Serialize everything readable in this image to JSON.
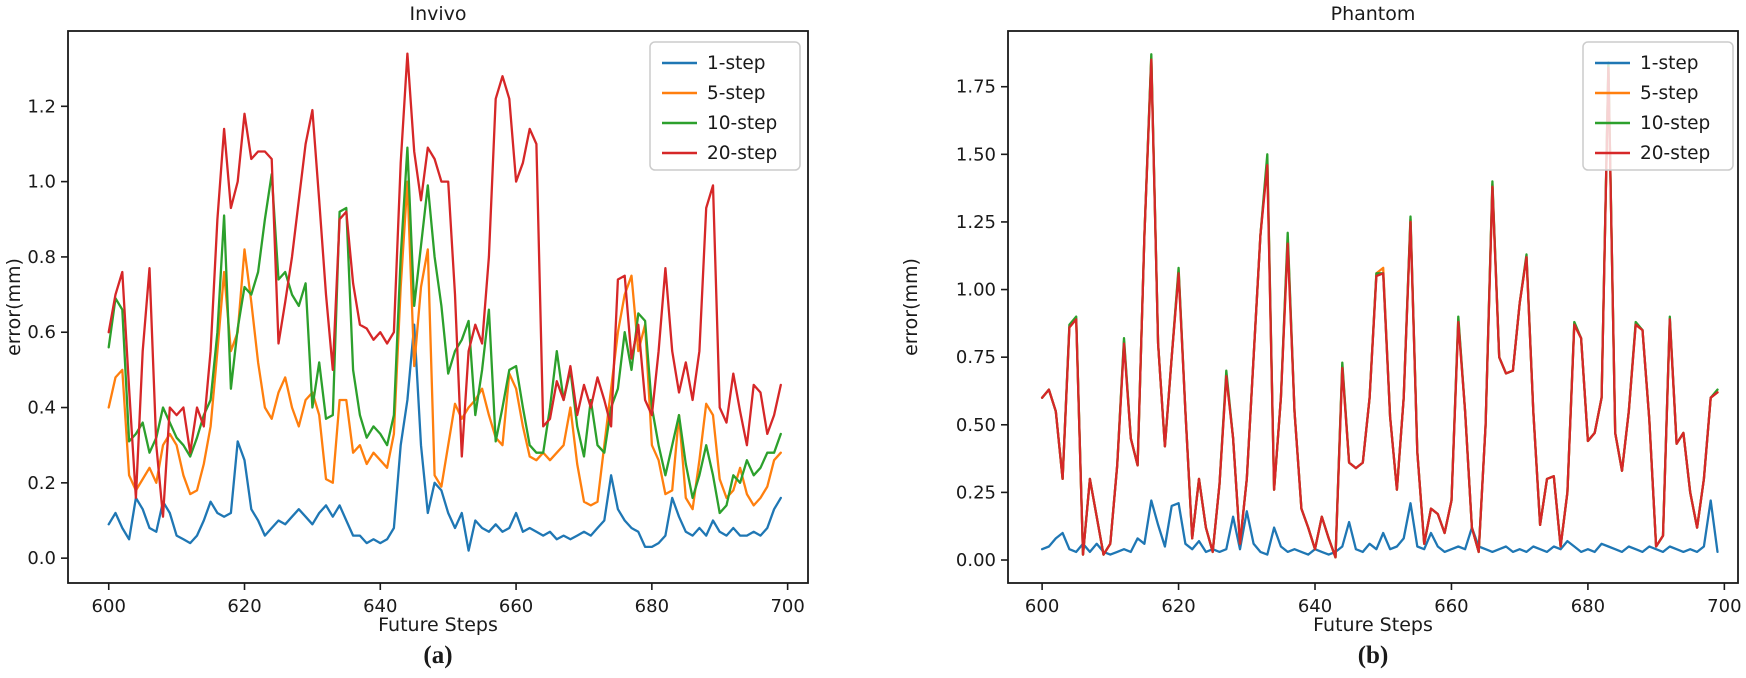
{
  "palette": {
    "blue": "#1f77b4",
    "orange": "#ff7f0e",
    "green": "#2ca02c",
    "red": "#d62728",
    "spine": "#1a1a1a",
    "legend_edge": "#cccccc"
  },
  "chart_data": [
    {
      "type": "line",
      "title": "Invivo",
      "caption": "(a)",
      "xlabel": "Future Steps",
      "ylabel": "error(mm)",
      "x": {
        "start": 600,
        "end": 699,
        "step": 1
      },
      "xlim": [
        594,
        703
      ],
      "ylim": [
        -0.066,
        1.4
      ],
      "xtick_labels": [
        "600",
        "620",
        "640",
        "660",
        "680",
        "700"
      ],
      "ytick_labels": [
        "0.0",
        "0.2",
        "0.4",
        "0.6",
        "0.8",
        "1.0",
        "1.2"
      ],
      "grid": false,
      "legend": {
        "position": "upper right",
        "entries": [
          "1-step",
          "5-step",
          "10-step",
          "20-step"
        ]
      },
      "series": [
        {
          "name": "1-step",
          "color": "blue",
          "values": [
            0.09,
            0.12,
            0.08,
            0.05,
            0.16,
            0.13,
            0.08,
            0.07,
            0.15,
            0.12,
            0.06,
            0.05,
            0.04,
            0.06,
            0.1,
            0.15,
            0.12,
            0.11,
            0.12,
            0.31,
            0.26,
            0.13,
            0.1,
            0.06,
            0.08,
            0.1,
            0.09,
            0.11,
            0.13,
            0.11,
            0.09,
            0.12,
            0.14,
            0.11,
            0.14,
            0.1,
            0.06,
            0.06,
            0.04,
            0.05,
            0.04,
            0.05,
            0.08,
            0.3,
            0.42,
            0.62,
            0.3,
            0.12,
            0.2,
            0.18,
            0.12,
            0.08,
            0.12,
            0.02,
            0.1,
            0.08,
            0.07,
            0.09,
            0.07,
            0.08,
            0.12,
            0.07,
            0.08,
            0.07,
            0.06,
            0.07,
            0.05,
            0.06,
            0.05,
            0.06,
            0.07,
            0.06,
            0.08,
            0.1,
            0.22,
            0.13,
            0.1,
            0.08,
            0.07,
            0.03,
            0.03,
            0.04,
            0.06,
            0.16,
            0.11,
            0.07,
            0.06,
            0.08,
            0.06,
            0.1,
            0.07,
            0.06,
            0.08,
            0.06,
            0.06,
            0.07,
            0.06,
            0.08,
            0.13,
            0.16
          ]
        },
        {
          "name": "5-step",
          "color": "orange",
          "values": [
            0.4,
            0.48,
            0.5,
            0.22,
            0.18,
            0.21,
            0.24,
            0.2,
            0.3,
            0.33,
            0.3,
            0.22,
            0.17,
            0.18,
            0.25,
            0.35,
            0.55,
            0.76,
            0.55,
            0.6,
            0.82,
            0.68,
            0.52,
            0.4,
            0.37,
            0.44,
            0.48,
            0.4,
            0.35,
            0.42,
            0.44,
            0.38,
            0.21,
            0.2,
            0.42,
            0.42,
            0.28,
            0.3,
            0.25,
            0.28,
            0.26,
            0.24,
            0.33,
            0.72,
            1.0,
            0.51,
            0.72,
            0.82,
            0.22,
            0.19,
            0.3,
            0.41,
            0.37,
            0.4,
            0.42,
            0.45,
            0.38,
            0.32,
            0.3,
            0.49,
            0.45,
            0.35,
            0.27,
            0.26,
            0.28,
            0.26,
            0.28,
            0.3,
            0.4,
            0.25,
            0.15,
            0.14,
            0.15,
            0.3,
            0.45,
            0.6,
            0.7,
            0.75,
            0.55,
            0.62,
            0.3,
            0.26,
            0.17,
            0.18,
            0.38,
            0.16,
            0.13,
            0.26,
            0.41,
            0.38,
            0.21,
            0.16,
            0.18,
            0.24,
            0.17,
            0.14,
            0.16,
            0.19,
            0.26,
            0.28
          ]
        },
        {
          "name": "10-step",
          "color": "green",
          "values": [
            0.56,
            0.69,
            0.66,
            0.31,
            0.33,
            0.36,
            0.28,
            0.32,
            0.4,
            0.36,
            0.32,
            0.3,
            0.27,
            0.32,
            0.38,
            0.42,
            0.6,
            0.91,
            0.45,
            0.61,
            0.72,
            0.7,
            0.76,
            0.9,
            1.02,
            0.74,
            0.76,
            0.7,
            0.67,
            0.73,
            0.4,
            0.52,
            0.37,
            0.38,
            0.92,
            0.93,
            0.5,
            0.38,
            0.32,
            0.35,
            0.33,
            0.3,
            0.38,
            0.8,
            1.09,
            0.67,
            0.83,
            0.99,
            0.8,
            0.67,
            0.49,
            0.55,
            0.58,
            0.63,
            0.38,
            0.5,
            0.66,
            0.31,
            0.4,
            0.5,
            0.51,
            0.4,
            0.3,
            0.28,
            0.28,
            0.4,
            0.55,
            0.42,
            0.5,
            0.35,
            0.27,
            0.42,
            0.3,
            0.28,
            0.4,
            0.45,
            0.6,
            0.5,
            0.65,
            0.63,
            0.4,
            0.3,
            0.22,
            0.3,
            0.38,
            0.25,
            0.16,
            0.22,
            0.3,
            0.22,
            0.12,
            0.14,
            0.22,
            0.2,
            0.26,
            0.22,
            0.24,
            0.28,
            0.28,
            0.33
          ]
        },
        {
          "name": "20-step",
          "color": "red",
          "values": [
            0.6,
            0.7,
            0.76,
            0.45,
            0.16,
            0.55,
            0.77,
            0.3,
            0.11,
            0.4,
            0.38,
            0.4,
            0.28,
            0.4,
            0.35,
            0.55,
            0.9,
            1.14,
            0.93,
            1.0,
            1.18,
            1.06,
            1.08,
            1.08,
            1.06,
            0.57,
            0.68,
            0.8,
            0.95,
            1.1,
            1.19,
            0.95,
            0.7,
            0.5,
            0.9,
            0.92,
            0.73,
            0.62,
            0.61,
            0.58,
            0.6,
            0.57,
            0.6,
            1.05,
            1.34,
            1.08,
            0.95,
            1.09,
            1.06,
            1.0,
            1.0,
            0.7,
            0.27,
            0.55,
            0.62,
            0.57,
            0.8,
            1.22,
            1.28,
            1.22,
            1.0,
            1.05,
            1.14,
            1.1,
            0.35,
            0.37,
            0.47,
            0.42,
            0.51,
            0.38,
            0.46,
            0.4,
            0.48,
            0.42,
            0.35,
            0.74,
            0.75,
            0.53,
            0.62,
            0.42,
            0.38,
            0.55,
            0.77,
            0.55,
            0.44,
            0.52,
            0.42,
            0.55,
            0.93,
            0.99,
            0.4,
            0.36,
            0.49,
            0.39,
            0.3,
            0.46,
            0.44,
            0.33,
            0.38,
            0.46
          ]
        }
      ]
    },
    {
      "type": "line",
      "title": "Phantom",
      "caption": "(b)",
      "xlabel": "Future Steps",
      "ylabel": "error(mm)",
      "x": {
        "start": 600,
        "end": 699,
        "step": 1
      },
      "xlim": [
        595,
        702
      ],
      "ylim": [
        -0.085,
        1.956
      ],
      "xtick_labels": [
        "600",
        "620",
        "640",
        "660",
        "680",
        "700"
      ],
      "ytick_labels": [
        "0.00",
        "0.25",
        "0.50",
        "0.75",
        "1.00",
        "1.25",
        "1.50",
        "1.75"
      ],
      "grid": false,
      "legend": {
        "position": "upper right",
        "entries": [
          "1-step",
          "5-step",
          "10-step",
          "20-step"
        ]
      },
      "series": [
        {
          "name": "1-step",
          "color": "blue",
          "values": [
            0.04,
            0.05,
            0.08,
            0.1,
            0.04,
            0.03,
            0.06,
            0.03,
            0.06,
            0.03,
            0.02,
            0.03,
            0.04,
            0.03,
            0.08,
            0.06,
            0.22,
            0.13,
            0.05,
            0.2,
            0.21,
            0.06,
            0.04,
            0.07,
            0.03,
            0.04,
            0.03,
            0.04,
            0.16,
            0.04,
            0.18,
            0.06,
            0.03,
            0.02,
            0.12,
            0.05,
            0.03,
            0.04,
            0.03,
            0.02,
            0.04,
            0.03,
            0.02,
            0.03,
            0.05,
            0.14,
            0.04,
            0.03,
            0.06,
            0.04,
            0.1,
            0.04,
            0.05,
            0.08,
            0.21,
            0.05,
            0.04,
            0.1,
            0.05,
            0.03,
            0.04,
            0.05,
            0.04,
            0.12,
            0.05,
            0.04,
            0.03,
            0.04,
            0.05,
            0.03,
            0.04,
            0.03,
            0.05,
            0.04,
            0.03,
            0.05,
            0.04,
            0.07,
            0.05,
            0.03,
            0.04,
            0.03,
            0.06,
            0.05,
            0.04,
            0.03,
            0.05,
            0.04,
            0.03,
            0.05,
            0.04,
            0.03,
            0.05,
            0.04,
            0.03,
            0.04,
            0.03,
            0.05,
            0.22,
            0.03
          ]
        },
        {
          "name": "5-step",
          "color": "orange",
          "values": [
            0.6,
            0.63,
            0.55,
            0.3,
            0.86,
            0.89,
            0.02,
            0.3,
            0.16,
            0.02,
            0.06,
            0.35,
            0.81,
            0.45,
            0.35,
            1.2,
            1.86,
            0.8,
            0.42,
            0.75,
            1.07,
            0.55,
            0.08,
            0.3,
            0.12,
            0.03,
            0.28,
            0.68,
            0.45,
            0.06,
            0.3,
            0.75,
            1.2,
            1.48,
            0.26,
            0.6,
            1.19,
            0.55,
            0.19,
            0.12,
            0.04,
            0.16,
            0.08,
            0.01,
            0.72,
            0.36,
            0.34,
            0.36,
            0.6,
            1.06,
            1.08,
            0.53,
            0.26,
            0.6,
            1.26,
            0.4,
            0.06,
            0.19,
            0.17,
            0.1,
            0.22,
            0.89,
            0.55,
            0.12,
            0.03,
            0.5,
            1.39,
            0.75,
            0.69,
            0.7,
            0.95,
            1.12,
            0.55,
            0.13,
            0.3,
            0.31,
            0.05,
            0.25,
            0.87,
            0.82,
            0.44,
            0.47,
            0.6,
            1.83,
            0.47,
            0.33,
            0.55,
            0.87,
            0.85,
            0.52,
            0.05,
            0.09,
            0.89,
            0.43,
            0.47,
            0.25,
            0.12,
            0.3,
            0.6,
            0.62
          ]
        },
        {
          "name": "10-step",
          "color": "green",
          "values": [
            0.6,
            0.63,
            0.55,
            0.3,
            0.87,
            0.9,
            0.02,
            0.3,
            0.16,
            0.02,
            0.06,
            0.35,
            0.82,
            0.45,
            0.35,
            1.2,
            1.87,
            0.8,
            0.42,
            0.75,
            1.08,
            0.55,
            0.08,
            0.3,
            0.12,
            0.03,
            0.28,
            0.7,
            0.45,
            0.06,
            0.3,
            0.75,
            1.2,
            1.5,
            0.26,
            0.6,
            1.21,
            0.55,
            0.19,
            0.12,
            0.04,
            0.16,
            0.08,
            0.01,
            0.73,
            0.36,
            0.34,
            0.36,
            0.6,
            1.06,
            1.06,
            0.53,
            0.26,
            0.6,
            1.27,
            0.4,
            0.06,
            0.19,
            0.17,
            0.1,
            0.22,
            0.9,
            0.55,
            0.12,
            0.03,
            0.5,
            1.4,
            0.75,
            0.69,
            0.7,
            0.95,
            1.13,
            0.55,
            0.13,
            0.3,
            0.31,
            0.05,
            0.25,
            0.88,
            0.82,
            0.44,
            0.47,
            0.6,
            1.84,
            0.47,
            0.33,
            0.55,
            0.88,
            0.85,
            0.52,
            0.05,
            0.09,
            0.9,
            0.43,
            0.47,
            0.25,
            0.12,
            0.3,
            0.6,
            0.63
          ]
        },
        {
          "name": "20-step",
          "color": "red",
          "values": [
            0.6,
            0.63,
            0.55,
            0.3,
            0.86,
            0.89,
            0.02,
            0.3,
            0.16,
            0.02,
            0.06,
            0.35,
            0.8,
            0.45,
            0.35,
            1.2,
            1.85,
            0.8,
            0.42,
            0.75,
            1.06,
            0.55,
            0.08,
            0.3,
            0.12,
            0.03,
            0.28,
            0.68,
            0.45,
            0.06,
            0.3,
            0.75,
            1.2,
            1.46,
            0.26,
            0.6,
            1.17,
            0.55,
            0.19,
            0.12,
            0.04,
            0.16,
            0.08,
            0.01,
            0.71,
            0.36,
            0.34,
            0.36,
            0.6,
            1.05,
            1.06,
            0.53,
            0.26,
            0.6,
            1.25,
            0.4,
            0.06,
            0.19,
            0.17,
            0.1,
            0.22,
            0.88,
            0.55,
            0.12,
            0.03,
            0.5,
            1.38,
            0.75,
            0.69,
            0.7,
            0.95,
            1.12,
            0.55,
            0.13,
            0.3,
            0.31,
            0.05,
            0.25,
            0.87,
            0.82,
            0.44,
            0.47,
            0.6,
            1.82,
            0.47,
            0.33,
            0.55,
            0.87,
            0.85,
            0.52,
            0.05,
            0.09,
            0.89,
            0.43,
            0.47,
            0.25,
            0.12,
            0.3,
            0.6,
            0.62
          ]
        }
      ]
    }
  ]
}
